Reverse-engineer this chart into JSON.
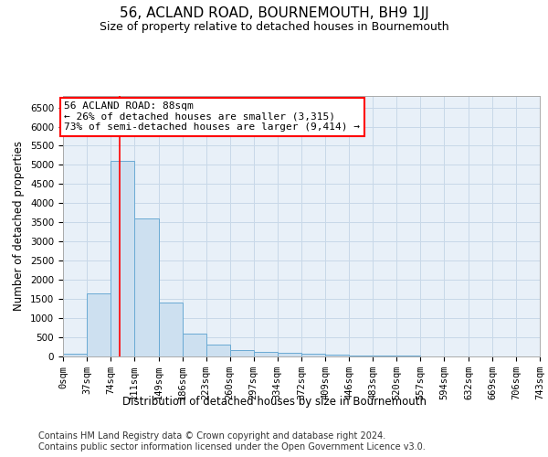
{
  "title": "56, ACLAND ROAD, BOURNEMOUTH, BH9 1JJ",
  "subtitle": "Size of property relative to detached houses in Bournemouth",
  "xlabel": "Distribution of detached houses by size in Bournemouth",
  "ylabel": "Number of detached properties",
  "footer1": "Contains HM Land Registry data © Crown copyright and database right 2024.",
  "footer2": "Contains public sector information licensed under the Open Government Licence v3.0.",
  "bin_edges": [
    0,
    37,
    74,
    111,
    149,
    186,
    223,
    260,
    297,
    334,
    372,
    409,
    446,
    483,
    520,
    557,
    594,
    632,
    669,
    706,
    743
  ],
  "bar_heights": [
    75,
    1650,
    5100,
    3600,
    1400,
    600,
    320,
    160,
    130,
    105,
    75,
    50,
    30,
    20,
    12,
    8,
    5,
    3,
    2,
    1
  ],
  "bar_color": "#cde0f0",
  "bar_edge_color": "#6aaad4",
  "red_line_x": 88,
  "annotation_line1": "56 ACLAND ROAD: 88sqm",
  "annotation_line2": "← 26% of detached houses are smaller (3,315)",
  "annotation_line3": "73% of semi-detached houses are larger (9,414) →",
  "ylim": [
    0,
    6800
  ],
  "yticks": [
    0,
    500,
    1000,
    1500,
    2000,
    2500,
    3000,
    3500,
    4000,
    4500,
    5000,
    5500,
    6000,
    6500
  ],
  "grid_color": "#c8d8e8",
  "background_color": "#e8f0f8",
  "title_fontsize": 11,
  "subtitle_fontsize": 9,
  "axis_label_fontsize": 8.5,
  "tick_fontsize": 7.5,
  "annotation_fontsize": 8,
  "footer_fontsize": 7
}
